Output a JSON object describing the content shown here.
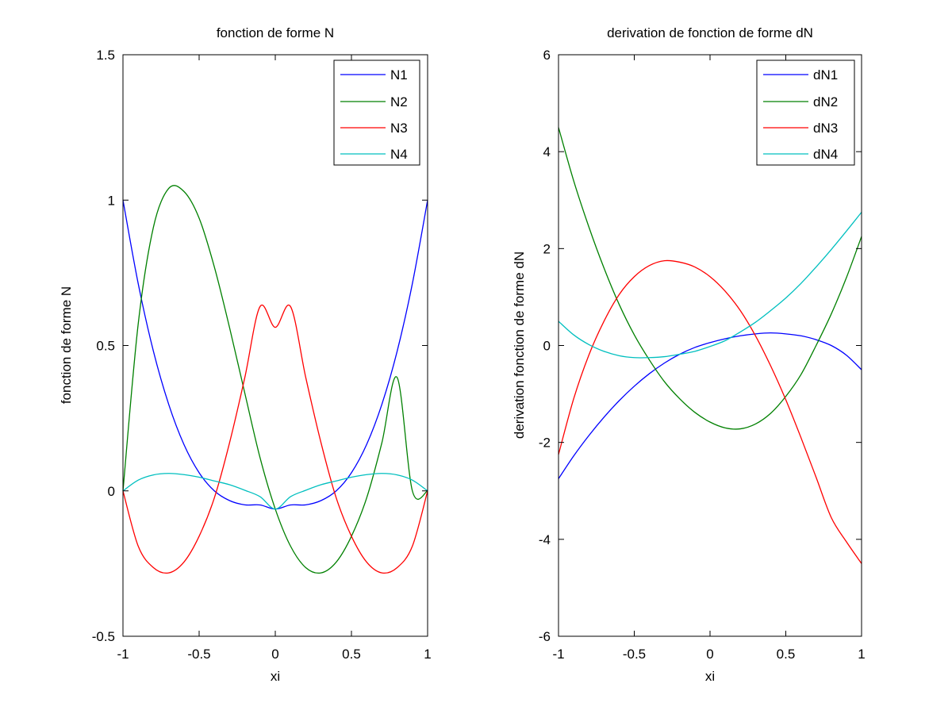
{
  "chart_data": [
    {
      "type": "line",
      "title": "fonction de forme N",
      "xlabel": "xi",
      "ylabel": "fonction de forme N",
      "xlim": [
        -1,
        1
      ],
      "ylim": [
        -0.5,
        1.5
      ],
      "xticks": [
        "-1",
        "-0.5",
        "0",
        "0.5",
        "1"
      ],
      "yticks": [
        "-0.5",
        "0",
        "0.5",
        "1",
        "1.5"
      ],
      "legend_position": "top-right",
      "grid": false,
      "x": [
        -1.0,
        -0.9,
        -0.8,
        -0.7,
        -0.6,
        -0.5,
        -0.4,
        -0.3,
        -0.2,
        -0.1,
        0.0,
        0.1,
        0.2,
        0.3,
        0.4,
        0.5,
        0.6,
        0.7,
        0.8,
        0.9,
        1.0
      ],
      "series": [
        {
          "name": "N1",
          "color": "#0000ff",
          "values": [
            1.0,
            0.713,
            0.48,
            0.298,
            0.16,
            0.0625,
            0.0,
            -0.0334,
            -0.048,
            -0.0484,
            -0.0625,
            -0.0484,
            -0.048,
            -0.0334,
            0.0,
            0.0625,
            0.16,
            0.298,
            0.48,
            0.713,
            1.0
          ]
        },
        {
          "name": "N2",
          "color": "#008000",
          "values": [
            0.0,
            0.574,
            0.907,
            1.04,
            1.03,
            0.938,
            0.77,
            0.561,
            0.336,
            0.114,
            -0.0625,
            -0.19,
            -0.264,
            -0.282,
            -0.245,
            -0.156,
            -0.024,
            0.166,
            0.39,
            0.0,
            0.0
          ]
        },
        {
          "name": "N3",
          "color": "#ff0000",
          "values": [
            0.0,
            -0.19,
            -0.264,
            -0.282,
            -0.245,
            -0.156,
            -0.024,
            0.166,
            0.39,
            0.634,
            0.5625,
            0.634,
            0.39,
            0.166,
            -0.024,
            -0.156,
            -0.245,
            -0.282,
            -0.264,
            -0.19,
            0.0
          ]
        },
        {
          "name": "N4",
          "color": "#00bfbf",
          "values": [
            0.0,
            0.037,
            0.055,
            0.06,
            0.056,
            0.047,
            0.034,
            0.021,
            0.002,
            -0.02,
            -0.0625,
            -0.02,
            0.002,
            0.021,
            0.034,
            0.047,
            0.056,
            0.06,
            0.055,
            0.037,
            0.0
          ]
        }
      ]
    },
    {
      "type": "line",
      "title": "derivation de fonction de forme dN",
      "xlabel": "xi",
      "ylabel": "derivation fonction de forme dN",
      "xlim": [
        -1,
        1
      ],
      "ylim": [
        -6,
        6
      ],
      "xticks": [
        "-1",
        "-0.5",
        "0",
        "0.5",
        "1"
      ],
      "yticks": [
        "-6",
        "-4",
        "-2",
        "0",
        "2",
        "4",
        "6"
      ],
      "legend_position": "top-right",
      "grid": false,
      "x": [
        -1.0,
        -0.9,
        -0.8,
        -0.7,
        -0.6,
        -0.5,
        -0.4,
        -0.3,
        -0.2,
        -0.1,
        0.0,
        0.1,
        0.2,
        0.3,
        0.4,
        0.5,
        0.6,
        0.7,
        0.8,
        0.9,
        1.0
      ],
      "series": [
        {
          "name": "dN1",
          "color": "#0000ff",
          "values": [
            -2.75,
            -2.28,
            -1.86,
            -1.48,
            -1.14,
            -0.84,
            -0.58,
            -0.36,
            -0.18,
            -0.04,
            0.06,
            0.14,
            0.2,
            0.24,
            0.26,
            0.24,
            0.2,
            0.12,
            0.0,
            -0.2,
            -0.5
          ]
        },
        {
          "name": "dN2",
          "color": "#008000",
          "values": [
            4.5,
            3.4,
            2.45,
            1.6,
            0.85,
            0.22,
            -0.3,
            -0.75,
            -1.1,
            -1.38,
            -1.58,
            -1.7,
            -1.72,
            -1.62,
            -1.4,
            -1.05,
            -0.6,
            0.0,
            0.65,
            1.4,
            2.25
          ]
        },
        {
          "name": "dN3",
          "color": "#ff0000",
          "values": [
            -2.25,
            -1.1,
            -0.2,
            0.5,
            1.05,
            1.42,
            1.65,
            1.75,
            1.72,
            1.62,
            1.42,
            1.12,
            0.72,
            0.2,
            -0.42,
            -1.12,
            -1.9,
            -2.72,
            -3.55,
            -4.05,
            -4.5
          ]
        },
        {
          "name": "dN4",
          "color": "#00bfbf",
          "values": [
            0.5,
            0.22,
            0.02,
            -0.12,
            -0.21,
            -0.25,
            -0.25,
            -0.23,
            -0.18,
            -0.12,
            -0.02,
            0.1,
            0.28,
            0.48,
            0.72,
            0.98,
            1.28,
            1.62,
            1.98,
            2.36,
            2.75
          ]
        }
      ]
    }
  ]
}
